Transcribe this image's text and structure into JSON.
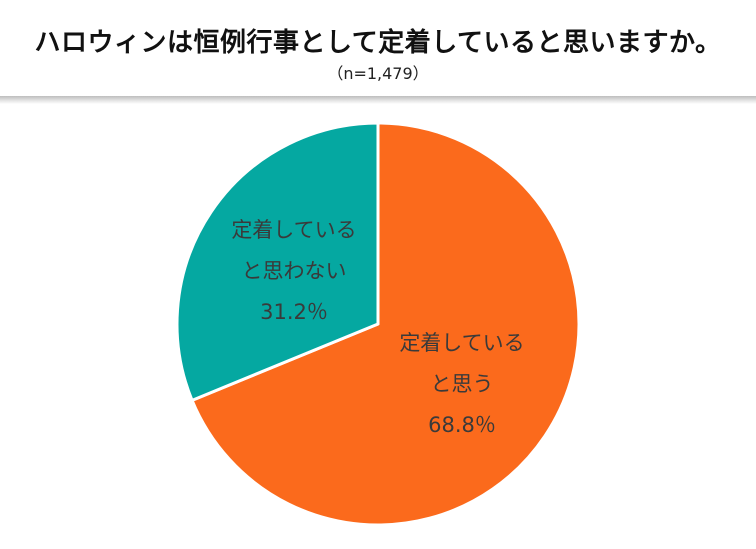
{
  "header": {
    "title": "ハロウィンは恒例行事として定着していると思いますか。",
    "subtitle": "（n=1,479）"
  },
  "colors": {
    "yes": "#fb6a1c",
    "no": "#05a8a1",
    "border": "#ffffff"
  },
  "chart_data": {
    "type": "pie",
    "title": "ハロウィンは恒例行事として定着していると思いますか。",
    "subtitle": "（n=1,479）",
    "slices": [
      {
        "label_lines": [
          "定着している",
          "と思う",
          "68.8％"
        ],
        "value": 68.8,
        "color": "#fb6a1c"
      },
      {
        "label_lines": [
          "定着している",
          "と思わない",
          "31.2％"
        ],
        "value": 31.2,
        "color": "#05a8a1"
      }
    ],
    "start": "12 o'clock",
    "direction": "clockwise"
  }
}
